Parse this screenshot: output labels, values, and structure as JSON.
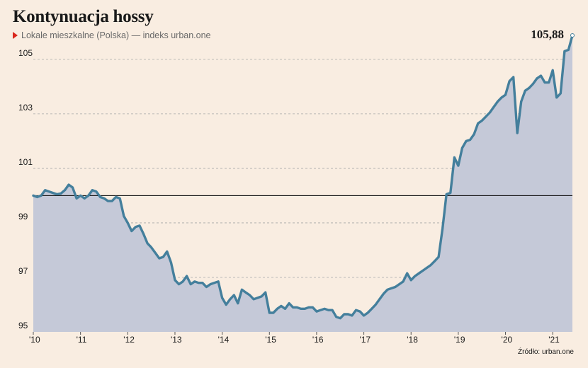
{
  "title": "Kontynuacja hossy",
  "subtitle": "Lokale mieszkalne (Polska) — indeks urban.one",
  "source": "Źródło: urban.one",
  "colors": {
    "line": "#447f9c",
    "area": "#c5c9d8",
    "grid": "#a8a8a8",
    "baseline": "#1a1a1a",
    "accent": "#d9261c"
  },
  "chart_data": {
    "type": "area",
    "title": "Kontynuacja hossy",
    "subtitle": "Lokale mieszkalne (Polska) — indeks urban.one",
    "xlabel": "",
    "ylabel": "",
    "ylim": [
      95,
      105.88
    ],
    "yticks": [
      95,
      97,
      99,
      101,
      103,
      105
    ],
    "ytick_labels": [
      "95",
      "97",
      "99",
      "101",
      "103",
      "105"
    ],
    "xticks": [
      2010,
      2011,
      2012,
      2013,
      2014,
      2015,
      2016,
      2017,
      2018,
      2019,
      2020,
      2021
    ],
    "xtick_labels": [
      "'10",
      "'11",
      "'12",
      "'13",
      "'14",
      "'15",
      "'16",
      "'17",
      "'18",
      "'19",
      "'20",
      "'21"
    ],
    "reference_line": 100,
    "last_value_label": "105,88",
    "grid": true,
    "x": [
      2010.0,
      2010.083,
      2010.167,
      2010.25,
      2010.333,
      2010.417,
      2010.5,
      2010.583,
      2010.667,
      2010.75,
      2010.833,
      2010.917,
      2011.0,
      2011.083,
      2011.167,
      2011.25,
      2011.333,
      2011.417,
      2011.5,
      2011.583,
      2011.667,
      2011.75,
      2011.833,
      2011.917,
      2012.0,
      2012.083,
      2012.167,
      2012.25,
      2012.333,
      2012.417,
      2012.5,
      2012.583,
      2012.667,
      2012.75,
      2012.833,
      2012.917,
      2013.0,
      2013.083,
      2013.167,
      2013.25,
      2013.333,
      2013.417,
      2013.5,
      2013.583,
      2013.667,
      2013.75,
      2013.833,
      2013.917,
      2014.0,
      2014.083,
      2014.167,
      2014.25,
      2014.333,
      2014.417,
      2014.5,
      2014.583,
      2014.667,
      2014.75,
      2014.833,
      2014.917,
      2015.0,
      2015.083,
      2015.167,
      2015.25,
      2015.333,
      2015.417,
      2015.5,
      2015.583,
      2015.667,
      2015.75,
      2015.833,
      2015.917,
      2016.0,
      2016.083,
      2016.167,
      2016.25,
      2016.333,
      2016.417,
      2016.5,
      2016.583,
      2016.667,
      2016.75,
      2016.833,
      2016.917,
      2017.0,
      2017.083,
      2017.167,
      2017.25,
      2017.333,
      2017.417,
      2017.5,
      2017.583,
      2017.667,
      2017.75,
      2017.833,
      2017.917,
      2018.0,
      2018.083,
      2018.167,
      2018.25,
      2018.333,
      2018.417,
      2018.5,
      2018.583,
      2018.667,
      2018.75,
      2018.833,
      2018.917,
      2019.0,
      2019.083,
      2019.167,
      2019.25,
      2019.333,
      2019.417,
      2019.5,
      2019.583,
      2019.667,
      2019.75,
      2019.833,
      2019.917,
      2020.0,
      2020.083,
      2020.167,
      2020.25,
      2020.333,
      2020.417,
      2020.5,
      2020.583,
      2020.667,
      2020.75,
      2020.833,
      2020.917,
      2021.0,
      2021.083,
      2021.167,
      2021.25,
      2021.333,
      2021.417
    ],
    "series": [
      {
        "values": [
          100.0,
          99.95,
          100.0,
          100.2,
          100.15,
          100.1,
          100.05,
          100.08,
          100.2,
          100.4,
          100.3,
          99.9,
          100.0,
          99.9,
          100.0,
          100.2,
          100.15,
          99.95,
          99.9,
          99.8,
          99.8,
          99.95,
          99.9,
          99.25,
          99.0,
          98.7,
          98.85,
          98.9,
          98.6,
          98.25,
          98.1,
          97.9,
          97.7,
          97.75,
          97.95,
          97.55,
          96.9,
          96.75,
          96.85,
          97.05,
          96.75,
          96.85,
          96.8,
          96.8,
          96.65,
          96.75,
          96.8,
          96.85,
          96.25,
          96.0,
          96.2,
          96.35,
          96.05,
          96.55,
          96.45,
          96.35,
          96.2,
          96.25,
          96.3,
          96.45,
          95.7,
          95.7,
          95.85,
          95.95,
          95.85,
          96.05,
          95.9,
          95.9,
          95.85,
          95.85,
          95.9,
          95.9,
          95.75,
          95.8,
          95.85,
          95.8,
          95.8,
          95.55,
          95.5,
          95.65,
          95.65,
          95.6,
          95.8,
          95.75,
          95.6,
          95.7,
          95.85,
          96.0,
          96.2,
          96.4,
          96.55,
          96.6,
          96.65,
          96.75,
          96.85,
          97.15,
          96.9,
          97.05,
          97.15,
          97.25,
          97.35,
          97.45,
          97.6,
          97.75,
          98.8,
          100.05,
          100.1,
          101.4,
          101.1,
          101.75,
          102.0,
          102.05,
          102.25,
          102.65,
          102.75,
          102.9,
          103.05,
          103.25,
          103.45,
          103.6,
          103.7,
          104.2,
          104.35,
          102.3,
          103.45,
          103.85,
          103.95,
          104.1,
          104.3,
          104.4,
          104.15,
          104.15,
          104.6,
          103.6,
          103.75,
          105.3,
          105.35,
          105.88
        ]
      }
    ]
  }
}
